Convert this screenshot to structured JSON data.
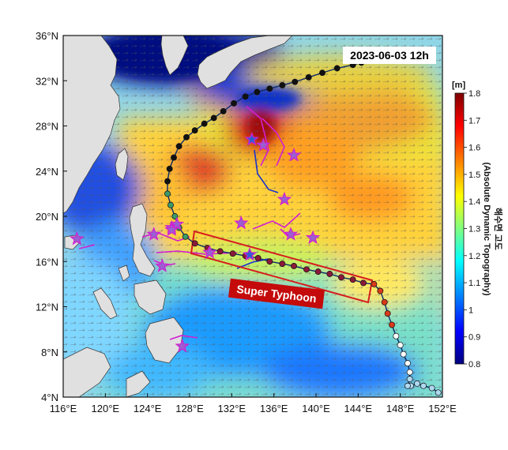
{
  "map": {
    "timestamp": "2023-06-03 12h",
    "annotation": "Super Typhoon",
    "lon_range": [
      116,
      152
    ],
    "lat_range": [
      4,
      36
    ],
    "lon_ticks": [
      {
        "value": 116,
        "label": "116°E"
      },
      {
        "value": 120,
        "label": "120°E"
      },
      {
        "value": 124,
        "label": "124°E"
      },
      {
        "value": 128,
        "label": "128°E"
      },
      {
        "value": 132,
        "label": "132°E"
      },
      {
        "value": 136,
        "label": "136°E"
      },
      {
        "value": 140,
        "label": "140°E"
      },
      {
        "value": 144,
        "label": "144°E"
      },
      {
        "value": 148,
        "label": "148°E"
      },
      {
        "value": 152,
        "label": "152°E"
      }
    ],
    "lat_ticks": [
      {
        "value": 36,
        "label": "36°N"
      },
      {
        "value": 32,
        "label": "32°N"
      },
      {
        "value": 28,
        "label": "28°N"
      },
      {
        "value": 24,
        "label": "24°N"
      },
      {
        "value": 20,
        "label": "20°N"
      },
      {
        "value": 16,
        "label": "16°N"
      },
      {
        "value": 12,
        "label": "12°N"
      },
      {
        "value": 8,
        "label": "8°N"
      },
      {
        "value": 4,
        "label": "4°N"
      }
    ],
    "colorbar": {
      "unit": "[m]",
      "title_korean": "해수면 고도",
      "title_english": "(Absolute Dynamic Topography)",
      "ticks": [
        {
          "value": 1.8,
          "label": "1.8"
        },
        {
          "value": 1.7,
          "label": "1.7"
        },
        {
          "value": 1.6,
          "label": "1.6"
        },
        {
          "value": 1.5,
          "label": "1.5"
        },
        {
          "value": 1.4,
          "label": "1.4"
        },
        {
          "value": 1.3,
          "label": "1.3"
        },
        {
          "value": 1.2,
          "label": "1.2"
        },
        {
          "value": 1.1,
          "label": "1.1"
        },
        {
          "value": 1.0,
          "label": "1"
        },
        {
          "value": 0.9,
          "label": "0.9"
        },
        {
          "value": 0.8,
          "label": "0.8"
        }
      ],
      "range": [
        0.8,
        1.8
      ],
      "colors": [
        "#00007f",
        "#0000ff",
        "#0080ff",
        "#00ffff",
        "#80ff80",
        "#ffff00",
        "#ff8000",
        "#ff0000",
        "#7f0000"
      ]
    },
    "typhoon_track": [
      [
        151.6,
        4.4
      ],
      [
        151.0,
        4.8
      ],
      [
        150.2,
        5.0
      ],
      [
        149.6,
        5.2
      ],
      [
        149.0,
        5.0
      ],
      [
        148.7,
        5.0
      ],
      [
        148.9,
        5.6
      ],
      [
        148.9,
        6.2
      ],
      [
        148.7,
        7.0
      ],
      [
        148.3,
        7.8
      ],
      [
        148.0,
        8.6
      ],
      [
        147.6,
        9.4
      ],
      [
        147.2,
        10.4
      ],
      [
        146.8,
        11.4
      ],
      [
        146.5,
        12.4
      ],
      [
        146.1,
        13.4
      ],
      [
        145.5,
        14.0
      ],
      [
        144.5,
        14.1
      ],
      [
        143.5,
        14.4
      ],
      [
        142.4,
        14.6
      ],
      [
        141.3,
        14.9
      ],
      [
        140.2,
        15.1
      ],
      [
        139.1,
        15.3
      ],
      [
        137.9,
        15.6
      ],
      [
        136.8,
        15.8
      ],
      [
        135.6,
        16.0
      ],
      [
        134.5,
        16.3
      ],
      [
        133.3,
        16.5
      ],
      [
        132.1,
        16.7
      ],
      [
        130.9,
        16.9
      ],
      [
        129.7,
        17.2
      ],
      [
        128.5,
        17.6
      ],
      [
        127.6,
        18.2
      ],
      [
        127.0,
        19.0
      ],
      [
        126.6,
        20.0
      ],
      [
        126.2,
        21.0
      ],
      [
        125.9,
        22.0
      ],
      [
        125.9,
        23.1
      ],
      [
        126.1,
        24.2
      ],
      [
        126.5,
        25.2
      ],
      [
        127.0,
        26.2
      ],
      [
        127.7,
        27.0
      ],
      [
        128.5,
        27.6
      ],
      [
        129.4,
        28.2
      ],
      [
        130.3,
        28.7
      ],
      [
        131.2,
        29.3
      ],
      [
        132.2,
        30.0
      ],
      [
        133.3,
        30.6
      ],
      [
        134.4,
        31.0
      ],
      [
        135.6,
        31.3
      ],
      [
        136.8,
        31.6
      ],
      [
        138.0,
        31.9
      ],
      [
        139.3,
        32.3
      ],
      [
        140.6,
        32.7
      ],
      [
        142.0,
        33.1
      ],
      [
        143.5,
        33.4
      ],
      [
        144.3,
        33.6
      ]
    ],
    "storm_stars": [
      {
        "lon": 117.3,
        "lat": 18.0,
        "fill": "#9a5fd0"
      },
      {
        "lon": 124.6,
        "lat": 18.4,
        "fill": "#9a5fd0"
      },
      {
        "lon": 125.4,
        "lat": 15.6,
        "fill": "#9a5fd0"
      },
      {
        "lon": 126.3,
        "lat": 19.0,
        "fill": "#9a5fd0"
      },
      {
        "lon": 126.8,
        "lat": 19.3,
        "fill": "#9a5fd0"
      },
      {
        "lon": 126.3,
        "lat": 18.8,
        "fill": "#9a5fd0"
      },
      {
        "lon": 129.9,
        "lat": 16.8,
        "fill": "#9a5fd0"
      },
      {
        "lon": 132.9,
        "lat": 19.4,
        "fill": "#9a5fd0"
      },
      {
        "lon": 133.7,
        "lat": 16.6,
        "fill": "#2f5fd0"
      },
      {
        "lon": 133.9,
        "lat": 26.8,
        "fill": "#2f5fd0"
      },
      {
        "lon": 135.0,
        "lat": 26.3,
        "fill": "#9a5fd0"
      },
      {
        "lon": 137.0,
        "lat": 21.5,
        "fill": "#9a5fd0"
      },
      {
        "lon": 137.6,
        "lat": 18.4,
        "fill": "#9a5fd0"
      },
      {
        "lon": 137.9,
        "lat": 25.4,
        "fill": "#9a5fd0"
      },
      {
        "lon": 139.7,
        "lat": 18.1,
        "fill": "#9a5fd0"
      },
      {
        "lon": 127.3,
        "lat": 8.5,
        "fill": "#9a5fd0"
      }
    ]
  }
}
